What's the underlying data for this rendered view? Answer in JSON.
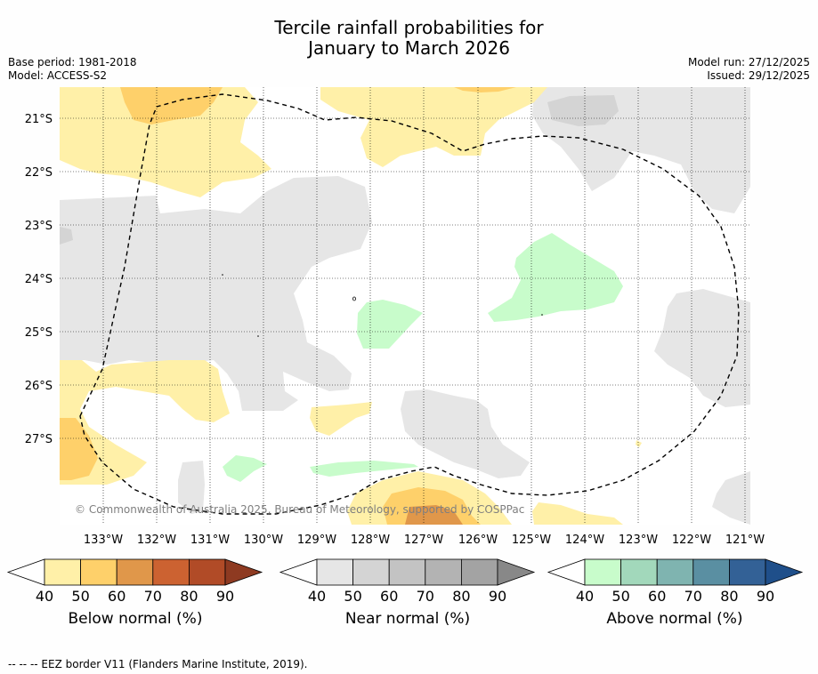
{
  "header": {
    "title_line1": "Tercile rainfall probabilities for",
    "title_line2": "January to March 2026",
    "base_period": "Base period: 1981-2018",
    "model": "Model: ACCESS-S2",
    "model_run": "Model run: 27/12/2025",
    "issued": "Issued: 29/12/2025"
  },
  "map": {
    "lat_labels": [
      "21°S",
      "22°S",
      "23°S",
      "24°S",
      "25°S",
      "26°S",
      "27°S"
    ],
    "lon_labels": [
      "133°W",
      "132°W",
      "131°W",
      "130°W",
      "129°W",
      "128°W",
      "127°W",
      "126°W",
      "125°W",
      "124°W",
      "123°W",
      "122°W",
      "121°W"
    ],
    "copyright": "© Commonwealth of Australia 2025, Bureau of Meteorology, supported by COSPPac"
  },
  "colorbars": [
    {
      "label": "Below normal (%)",
      "ticks": [
        "40",
        "50",
        "60",
        "70",
        "80",
        "90"
      ],
      "colors": [
        "#fff0a8",
        "#fed06a",
        "#e0974a",
        "#cc6231",
        "#b14b27",
        "#8e3a21"
      ]
    },
    {
      "label": "Near normal (%)",
      "ticks": [
        "40",
        "50",
        "60",
        "70",
        "80",
        "90"
      ],
      "colors": [
        "#e6e6e6",
        "#d4d4d4",
        "#c3c3c3",
        "#b3b3b3",
        "#a3a3a3",
        "#888888"
      ]
    },
    {
      "label": "Above normal (%)",
      "ticks": [
        "40",
        "50",
        "60",
        "70",
        "80",
        "90"
      ],
      "colors": [
        "#c8fccb",
        "#a2d8bb",
        "#7fb4b0",
        "#5a8fa2",
        "#336196",
        "#1f4f8a"
      ]
    }
  ],
  "footnote": "--  --  -- EEZ border V11 (Flanders Marine Institute, 2019)."
}
